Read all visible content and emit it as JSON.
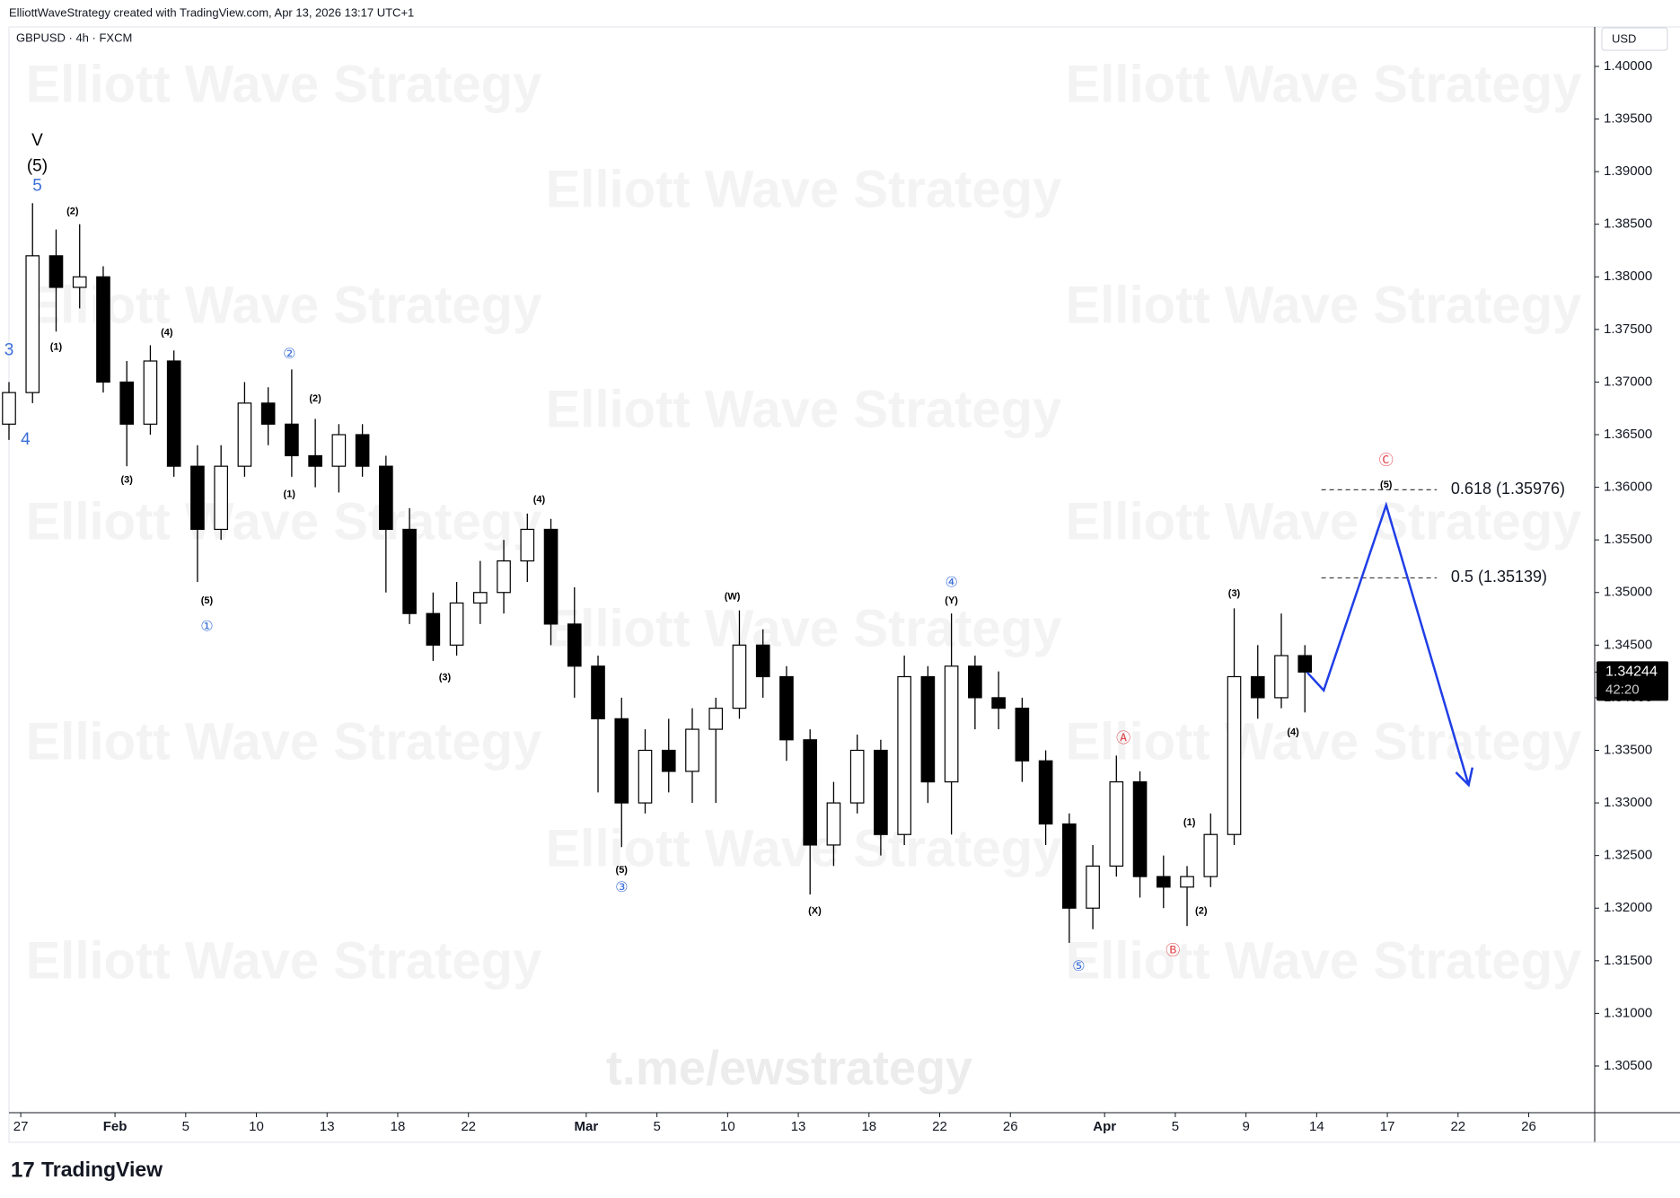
{
  "header": {
    "credit": "ElliottWaveStrategy created with TradingView.com, Apr 13, 2026 13:17 UTC+1",
    "logo": "TradingView",
    "currency": "USD",
    "countdown": "42:20"
  },
  "watermarks": {
    "text": "Elliott Wave Strategy",
    "link": "t.me/ewstrategy"
  },
  "chart_data": {
    "type": "candlestick",
    "title": "GBPUSD · 4h · FXCM",
    "up_color": "#ffffff",
    "down_color": "#000000",
    "edge_color": "#000000",
    "x": [
      -0.5,
      0.5,
      1.5,
      2.5,
      3.5,
      4.5,
      5.5,
      6.5,
      7.5,
      8.5,
      9.5,
      10.5,
      11.5,
      12.5,
      13.5,
      14.5,
      15.5,
      16.5,
      17.5,
      18.5,
      19.5,
      20.5,
      21.5,
      22.5,
      23.5,
      24.5,
      25.5,
      26.5,
      27.5,
      28.5,
      29.5,
      30.5,
      31.5,
      32.5,
      33.5,
      34.5,
      35.5,
      36.5,
      37.5,
      38.5,
      39.5,
      40.5,
      41.5,
      42.5,
      43.5,
      44.5,
      45.5,
      46.5,
      47.5,
      48.5,
      49.5,
      50.5,
      51.5,
      52.5,
      53.5,
      54.5
    ],
    "open": [
      1.366,
      1.369,
      1.382,
      1.379,
      1.38,
      1.37,
      1.366,
      1.372,
      1.362,
      1.356,
      1.362,
      1.368,
      1.366,
      1.363,
      1.362,
      1.365,
      1.362,
      1.356,
      1.348,
      1.345,
      1.349,
      1.35,
      1.353,
      1.356,
      1.347,
      1.343,
      1.338,
      1.33,
      1.335,
      1.333,
      1.337,
      1.339,
      1.345,
      1.342,
      1.336,
      1.326,
      1.33,
      1.335,
      1.327,
      1.342,
      1.332,
      1.343,
      1.34,
      1.339,
      1.334,
      1.328,
      1.32,
      1.324,
      1.332,
      1.323,
      1.322,
      1.323,
      1.327,
      1.342,
      1.34,
      1.344
    ],
    "high": [
      1.37,
      1.387,
      1.3845,
      1.385,
      1.381,
      1.372,
      1.3735,
      1.373,
      1.364,
      1.364,
      1.37,
      1.3695,
      1.3712,
      1.3665,
      1.366,
      1.366,
      1.363,
      1.358,
      1.35,
      1.351,
      1.353,
      1.355,
      1.3575,
      1.357,
      1.3505,
      1.344,
      1.34,
      1.337,
      1.338,
      1.339,
      1.34,
      1.3483,
      1.3465,
      1.343,
      1.337,
      1.332,
      1.3365,
      1.336,
      1.344,
      1.343,
      1.348,
      1.344,
      1.3425,
      1.34,
      1.335,
      1.329,
      1.326,
      1.3345,
      1.333,
      1.325,
      1.324,
      1.329,
      1.3485,
      1.345,
      1.348,
      1.345
    ],
    "low": [
      1.3645,
      1.368,
      1.3748,
      1.377,
      1.369,
      1.362,
      1.365,
      1.361,
      1.351,
      1.355,
      1.361,
      1.364,
      1.361,
      1.36,
      1.3595,
      1.361,
      1.35,
      1.347,
      1.3435,
      1.344,
      1.347,
      1.348,
      1.351,
      1.345,
      1.34,
      1.331,
      1.3258,
      1.329,
      1.331,
      1.33,
      1.33,
      1.338,
      1.34,
      1.334,
      1.3213,
      1.324,
      1.329,
      1.325,
      1.326,
      1.33,
      1.327,
      1.337,
      1.337,
      1.332,
      1.326,
      1.3167,
      1.318,
      1.323,
      1.321,
      1.32,
      1.3183,
      1.322,
      1.326,
      1.338,
      1.339,
      1.3386
    ],
    "close": [
      1.369,
      1.382,
      1.379,
      1.38,
      1.37,
      1.366,
      1.372,
      1.362,
      1.356,
      1.362,
      1.368,
      1.366,
      1.363,
      1.362,
      1.365,
      1.362,
      1.356,
      1.348,
      1.345,
      1.349,
      1.35,
      1.353,
      1.356,
      1.347,
      1.343,
      1.338,
      1.33,
      1.335,
      1.333,
      1.337,
      1.339,
      1.345,
      1.342,
      1.336,
      1.326,
      1.33,
      1.335,
      1.327,
      1.342,
      1.332,
      1.343,
      1.34,
      1.339,
      1.334,
      1.328,
      1.32,
      1.324,
      1.332,
      1.323,
      1.322,
      1.323,
      1.327,
      1.342,
      1.34,
      1.344,
      1.34244
    ],
    "xlim": [
      -0.5,
      66.8
    ],
    "ylim": [
      1.30056,
      1.40358
    ],
    "xticks": [
      {
        "value": 0,
        "label": "27"
      },
      {
        "value": 4,
        "label": "Feb"
      },
      {
        "value": 7,
        "label": "5"
      },
      {
        "value": 10,
        "label": "10"
      },
      {
        "value": 13,
        "label": "13"
      },
      {
        "value": 16,
        "label": "18"
      },
      {
        "value": 19,
        "label": "22"
      },
      {
        "value": 24,
        "label": "Mar"
      },
      {
        "value": 27,
        "label": "5"
      },
      {
        "value": 30,
        "label": "10"
      },
      {
        "value": 33,
        "label": "13"
      },
      {
        "value": 36,
        "label": "18"
      },
      {
        "value": 39,
        "label": "22"
      },
      {
        "value": 42,
        "label": "26"
      },
      {
        "value": 46,
        "label": "Apr"
      },
      {
        "value": 49,
        "label": "5"
      },
      {
        "value": 52,
        "label": "9"
      },
      {
        "value": 55,
        "label": "14"
      },
      {
        "value": 58,
        "label": "17"
      },
      {
        "value": 61,
        "label": "22"
      },
      {
        "value": 64,
        "label": "26"
      }
    ],
    "yticks": [
      {
        "value": 1.305,
        "label": "1.30500"
      },
      {
        "value": 1.31,
        "label": "1.31000"
      },
      {
        "value": 1.315,
        "label": "1.31500"
      },
      {
        "value": 1.32,
        "label": "1.32000"
      },
      {
        "value": 1.325,
        "label": "1.32500"
      },
      {
        "value": 1.33,
        "label": "1.33000"
      },
      {
        "value": 1.335,
        "label": "1.33500"
      },
      {
        "value": 1.34,
        "label": "1.34000"
      },
      {
        "value": 1.345,
        "label": "1.34500"
      },
      {
        "value": 1.35,
        "label": "1.35000"
      },
      {
        "value": 1.355,
        "label": "1.35500"
      },
      {
        "value": 1.36,
        "label": "1.36000"
      },
      {
        "value": 1.365,
        "label": "1.36500"
      },
      {
        "value": 1.37,
        "label": "1.37000"
      },
      {
        "value": 1.375,
        "label": "1.37500"
      },
      {
        "value": 1.38,
        "label": "1.38000"
      },
      {
        "value": 1.385,
        "label": "1.38500"
      },
      {
        "value": 1.39,
        "label": "1.39000"
      },
      {
        "value": 1.395,
        "label": "1.39500"
      },
      {
        "value": 1.4,
        "label": "1.40000"
      }
    ],
    "projection": {
      "x": [
        54.6,
        55.3,
        57.95,
        61.45
      ],
      "values": [
        1.3424,
        1.3407,
        1.3583,
        1.3317
      ],
      "color": "#1f3ee6"
    },
    "levels": [
      {
        "value": 1.35976,
        "label": "0.618 (1.35976)"
      },
      {
        "value": 1.35139,
        "label": "0.5 (1.35139)"
      }
    ],
    "level_color": "#444444",
    "annotations": [
      {
        "text": "V",
        "x": 0.7,
        "y": 1.3929,
        "color": "#000000",
        "style": "major"
      },
      {
        "text": "(5)",
        "x": 0.7,
        "y": 1.3905,
        "color": "#000000",
        "style": "major"
      },
      {
        "text": "5",
        "x": 0.7,
        "y": 1.3886,
        "color": "#3b6fd8",
        "style": "major"
      },
      {
        "text": "3",
        "x": -0.5,
        "y": 1.373,
        "color": "#3b6fd8",
        "style": "major"
      },
      {
        "text": "4",
        "x": 0.2,
        "y": 1.3645,
        "color": "#3b6fd8",
        "style": "major"
      },
      {
        "text": "(2)",
        "x": 2.2,
        "y": 1.3862,
        "color": "#000000",
        "style": "minor"
      },
      {
        "text": "(1)",
        "x": 1.5,
        "y": 1.3733,
        "color": "#000000",
        "style": "minor"
      },
      {
        "text": "(4)",
        "x": 6.2,
        "y": 1.3747,
        "color": "#000000",
        "style": "minor"
      },
      {
        "text": "(3)",
        "x": 4.5,
        "y": 1.3607,
        "color": "#000000",
        "style": "minor"
      },
      {
        "text": "(5)",
        "x": 7.9,
        "y": 1.3492,
        "color": "#000000",
        "style": "minor"
      },
      {
        "text": "①",
        "x": 7.9,
        "y": 1.3467,
        "color": "#3b6fd8",
        "style": "circle"
      },
      {
        "text": "②",
        "x": 11.4,
        "y": 1.3726,
        "color": "#3b6fd8",
        "style": "circle"
      },
      {
        "text": "(2)",
        "x": 12.5,
        "y": 1.3684,
        "color": "#000000",
        "style": "minor"
      },
      {
        "text": "(1)",
        "x": 11.4,
        "y": 1.3593,
        "color": "#000000",
        "style": "minor"
      },
      {
        "text": "(4)",
        "x": 22,
        "y": 1.3588,
        "color": "#000000",
        "style": "minor"
      },
      {
        "text": "(3)",
        "x": 18,
        "y": 1.3419,
        "color": "#000000",
        "style": "minor"
      },
      {
        "text": "(5)",
        "x": 25.5,
        "y": 1.3236,
        "color": "#000000",
        "style": "minor"
      },
      {
        "text": "③",
        "x": 25.5,
        "y": 1.3219,
        "color": "#3b6fd8",
        "style": "circle"
      },
      {
        "text": "(W)",
        "x": 30.2,
        "y": 1.3496,
        "color": "#000000",
        "style": "minor"
      },
      {
        "text": "④",
        "x": 39.5,
        "y": 1.3509,
        "color": "#3b6fd8",
        "style": "circle"
      },
      {
        "text": "(Y)",
        "x": 39.5,
        "y": 1.3492,
        "color": "#000000",
        "style": "minor"
      },
      {
        "text": "(X)",
        "x": 33.7,
        "y": 1.3197,
        "color": "#000000",
        "style": "minor"
      },
      {
        "text": "⑤",
        "x": 44.9,
        "y": 1.3144,
        "color": "#3b6fd8",
        "style": "circle"
      },
      {
        "text": "Ⓐ",
        "x": 46.8,
        "y": 1.3361,
        "color": "#e0434b",
        "style": "circle"
      },
      {
        "text": "Ⓑ",
        "x": 48.9,
        "y": 1.3159,
        "color": "#e0434b",
        "style": "circle"
      },
      {
        "text": "(1)",
        "x": 49.6,
        "y": 1.3281,
        "color": "#000000",
        "style": "minor"
      },
      {
        "text": "(2)",
        "x": 50.1,
        "y": 1.3197,
        "color": "#000000",
        "style": "minor"
      },
      {
        "text": "(3)",
        "x": 51.5,
        "y": 1.3499,
        "color": "#000000",
        "style": "minor"
      },
      {
        "text": "(4)",
        "x": 54,
        "y": 1.3367,
        "color": "#000000",
        "style": "minor"
      },
      {
        "text": "Ⓒ",
        "x": 57.95,
        "y": 1.3625,
        "color": "#e0434b",
        "style": "circle"
      },
      {
        "text": "(5)",
        "x": 57.95,
        "y": 1.3602,
        "color": "#000000",
        "style": "minor"
      }
    ]
  }
}
